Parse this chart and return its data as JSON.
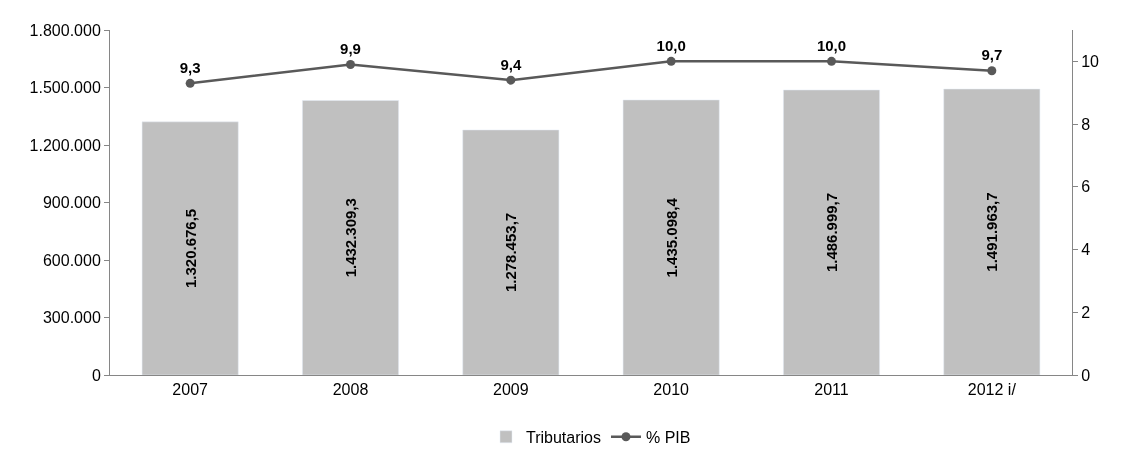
{
  "chart_data": {
    "type": "bar",
    "categories": [
      "2007",
      "2008",
      "2009",
      "2010",
      "2011",
      "2012 i/"
    ],
    "series": [
      {
        "name": "Tributarios",
        "color": "#c0c0c0",
        "values": [
          1320676.5,
          1432309.3,
          1278453.7,
          1435098.4,
          1486999.7,
          1491963.7
        ],
        "value_labels": [
          "1.320.676,5",
          "1.432.309,3",
          "1.278.453,7",
          "1.435.098,4",
          "1.486.999,7",
          "1.491.963,7"
        ]
      },
      {
        "name": "% PIB",
        "type": "line",
        "axis": "y2",
        "color": "#595959",
        "marker": "circle",
        "values": [
          9.3,
          9.9,
          9.4,
          10.0,
          10.0,
          9.7
        ],
        "value_labels": [
          "9,3",
          "9,9",
          "9,4",
          "10,0",
          "10,0",
          "9,7"
        ]
      }
    ],
    "ylim": [
      0,
      1800000
    ],
    "yticks": [
      {
        "value": 0,
        "label": "0"
      },
      {
        "value": 300000,
        "label": "300.000"
      },
      {
        "value": 600000,
        "label": "600.000"
      },
      {
        "value": 900000,
        "label": "900.000"
      },
      {
        "value": 1200000,
        "label": "1.200.000"
      },
      {
        "value": 1500000,
        "label": "1.500.000"
      },
      {
        "value": 1800000,
        "label": "1.800.000"
      }
    ],
    "y2lim": [
      0,
      11
    ],
    "y2ticks": [
      0,
      2,
      4,
      6,
      8,
      10
    ],
    "grid": false,
    "legend": "bottom"
  }
}
